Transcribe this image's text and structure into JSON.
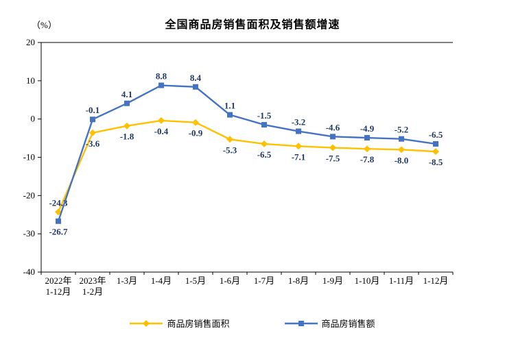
{
  "title": "全国商品房销售面积及销售额增速",
  "y_axis_unit": "（%）",
  "chart_data": {
    "type": "line",
    "categories": [
      [
        "2022年",
        "1-12月"
      ],
      [
        "2023年",
        "1-2月"
      ],
      [
        "1-3月"
      ],
      [
        "1-4月"
      ],
      [
        "1-5月"
      ],
      [
        "1-6月"
      ],
      [
        "1-7月"
      ],
      [
        "1-8月"
      ],
      [
        "1-9月"
      ],
      [
        "1-10月"
      ],
      [
        "1-11月"
      ],
      [
        "1-12月"
      ]
    ],
    "series": [
      {
        "name": "商品房销售面积",
        "marker": "diamond",
        "color": "#FFC000",
        "values": [
          -24.3,
          -3.6,
          -1.8,
          -0.4,
          -0.9,
          -5.3,
          -6.5,
          -7.1,
          -7.5,
          -7.8,
          -8.0,
          -8.5
        ]
      },
      {
        "name": "商品房销售额",
        "marker": "square",
        "color": "#4472C4",
        "values": [
          -26.7,
          -0.1,
          4.1,
          8.8,
          8.4,
          1.1,
          -1.5,
          -3.2,
          -4.6,
          -4.9,
          -5.2,
          -6.5
        ]
      }
    ],
    "ylim": [
      -40,
      20
    ],
    "yticks": [
      20,
      10,
      0,
      -10,
      -20,
      -30,
      -40
    ],
    "grid": false,
    "legend_position": "bottom",
    "axis_color": "#000000",
    "label_color": "#1F3864"
  }
}
